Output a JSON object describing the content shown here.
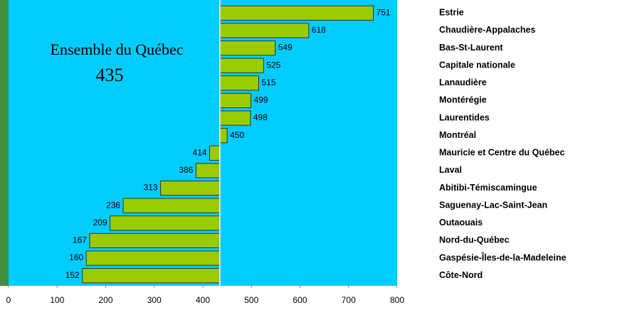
{
  "chart_data": {
    "type": "bar",
    "orientation": "horizontal",
    "annotation": "Ensemble du Québec",
    "baseline": 435,
    "categories": [
      "Estrie",
      "Chaudière-Appalaches",
      "Bas-St-Laurent",
      "Capitale nationale",
      "Lanaudière",
      "Montérégie",
      "Laurentides",
      "Montréal",
      "Mauricie et Centre du Québec",
      "Laval",
      "Abitibi-Témiscamingue",
      "Saguenay-Lac-Saint-Jean",
      "Outaouais",
      "Nord-du-Québec",
      "Gaspésie-Îles-de-la-Madeleine",
      "Côte-Nord"
    ],
    "values": [
      751,
      618,
      549,
      525,
      515,
      499,
      498,
      450,
      414,
      386,
      313,
      236,
      209,
      167,
      160,
      152
    ],
    "color": "#99cc00",
    "plot_background": "#00ccff",
    "xlim": [
      0,
      800
    ],
    "xticks": [
      0,
      100,
      200,
      300,
      400,
      500,
      600,
      700,
      800
    ]
  }
}
